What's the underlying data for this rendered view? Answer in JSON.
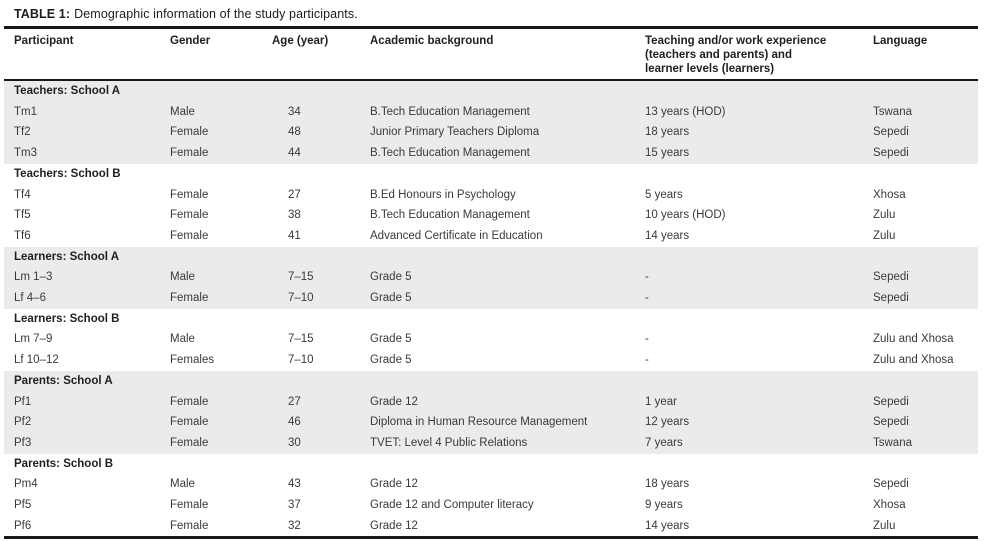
{
  "title": {
    "label": "TABLE 1:",
    "text": "Demographic information of the study participants."
  },
  "colors": {
    "section_shading": "#ebebeb",
    "rule": "#181818",
    "body_text": "#3a3a3a",
    "header_text": "#1f1f1f"
  },
  "table": {
    "columns": [
      "Participant",
      "Gender",
      "Age (year)",
      "Academic background",
      "Teaching and/or work experience\n(teachers and parents) and\nlearner levels (learners)",
      "Language"
    ],
    "sections": [
      {
        "header": "Teachers: School A",
        "shaded": true,
        "rows": [
          [
            "Tm1",
            "Male",
            "34",
            "B.Tech Education Management",
            "13 years (HOD)",
            "Tswana"
          ],
          [
            "Tf2",
            "Female",
            "48",
            "Junior Primary Teachers Diploma",
            "18 years",
            "Sepedi"
          ],
          [
            "Tm3",
            "Female",
            "44",
            "B.Tech Education Management",
            "15 years",
            "Sepedi"
          ]
        ]
      },
      {
        "header": "Teachers: School B",
        "shaded": false,
        "rows": [
          [
            "Tf4",
            "Female",
            "27",
            "B.Ed Honours in Psychology",
            "5 years",
            "Xhosa"
          ],
          [
            "Tf5",
            "Female",
            "38",
            "B.Tech Education Management",
            "10 years (HOD)",
            "Zulu"
          ],
          [
            "Tf6",
            "Female",
            "41",
            "Advanced Certificate in Education",
            "14 years",
            "Zulu"
          ]
        ]
      },
      {
        "header": "Learners: School A",
        "shaded": true,
        "rows": [
          [
            "Lm 1–3",
            "Male",
            "7–15",
            "Grade 5",
            "-",
            "Sepedi"
          ],
          [
            "Lf 4–6",
            "Female",
            "7–10",
            "Grade 5",
            "-",
            "Sepedi"
          ]
        ]
      },
      {
        "header": "Learners: School B",
        "shaded": false,
        "rows": [
          [
            "Lm 7–9",
            "Male",
            "7–15",
            "Grade 5",
            "-",
            "Zulu and Xhosa"
          ],
          [
            "Lf 10–12",
            "Females",
            "7–10",
            "Grade 5",
            "-",
            "Zulu and Xhosa"
          ]
        ]
      },
      {
        "header": "Parents: School A",
        "shaded": true,
        "rows": [
          [
            "Pf1",
            "Female",
            "27",
            "Grade 12",
            "1 year",
            "Sepedi"
          ],
          [
            "Pf2",
            "Female",
            "46",
            "Diploma in Human Resource Management",
            "12 years",
            "Sepedi"
          ],
          [
            "Pf3",
            "Female",
            "30",
            "TVET: Level 4 Public Relations",
            "7 years",
            "Tswana"
          ]
        ]
      },
      {
        "header": "Parents: School B",
        "shaded": false,
        "rows": [
          [
            "Pm4",
            "Male",
            "43",
            "Grade 12",
            "18 years",
            "Sepedi"
          ],
          [
            "Pf5",
            "Female",
            "37",
            "Grade 12 and Computer literacy",
            "9 years",
            "Xhosa"
          ],
          [
            "Pf6",
            "Female",
            "32",
            "Grade 12",
            "14 years",
            "Zulu"
          ]
        ]
      }
    ]
  }
}
